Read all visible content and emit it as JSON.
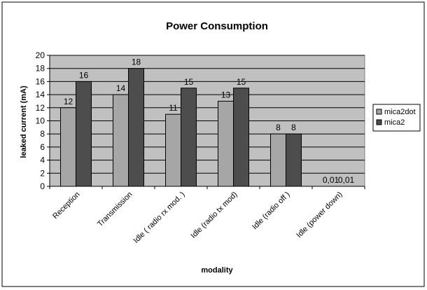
{
  "chart_data": {
    "type": "bar",
    "title": "Power Consumption",
    "xlabel": "modality",
    "ylabel": "leaked current (mA)",
    "ylim": [
      0,
      20
    ],
    "yticks": [
      0,
      2,
      4,
      6,
      8,
      10,
      12,
      14,
      16,
      18,
      20
    ],
    "grid": true,
    "legend": "right",
    "categories": [
      "Reception",
      "Transmission",
      "Idle ( radio rx mod. )",
      "Idle (radio tx mod)",
      "Idle (radio off )",
      "Idle (power down)"
    ],
    "series": [
      {
        "name": "mica2dot",
        "values": [
          12,
          14,
          11,
          13,
          8,
          0.01
        ],
        "labels": [
          "12",
          "14",
          "11",
          "13",
          "8",
          "0,01"
        ],
        "color": "#a6a6a6"
      },
      {
        "name": "mica2",
        "values": [
          16,
          18,
          15,
          15,
          8,
          0.01
        ],
        "labels": [
          "16",
          "18",
          "15",
          "15",
          "8",
          "0,01"
        ],
        "color": "#4d4d4d"
      }
    ],
    "plot_background": "#c0c0c0"
  }
}
